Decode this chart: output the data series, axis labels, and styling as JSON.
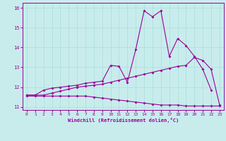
{
  "xlabel": "Windchill (Refroidissement éolien,°C)",
  "bg_color": "#c8ecec",
  "line_color": "#990099",
  "grid_color": "#aadddd",
  "x_values": [
    0,
    1,
    2,
    3,
    4,
    5,
    6,
    7,
    8,
    9,
    10,
    11,
    12,
    13,
    14,
    15,
    16,
    17,
    18,
    19,
    20,
    21,
    22,
    23
  ],
  "ylim": [
    10.85,
    16.25
  ],
  "xlim": [
    -0.5,
    23.5
  ],
  "yticks": [
    11,
    12,
    13,
    14,
    15,
    16
  ],
  "xticks": [
    0,
    1,
    2,
    3,
    4,
    5,
    6,
    7,
    8,
    9,
    10,
    11,
    12,
    13,
    14,
    15,
    16,
    17,
    18,
    19,
    20,
    21,
    22,
    23
  ],
  "line1": [
    11.6,
    11.6,
    11.85,
    11.95,
    12.0,
    12.05,
    12.1,
    12.2,
    12.25,
    12.3,
    13.1,
    13.05,
    12.25,
    13.9,
    15.85,
    15.55,
    15.85,
    13.55,
    14.45,
    14.1,
    13.55,
    12.9,
    11.85,
    null
  ],
  "line2": [
    11.6,
    11.6,
    11.6,
    11.7,
    11.8,
    11.9,
    12.0,
    12.05,
    12.1,
    12.15,
    12.25,
    12.35,
    12.45,
    12.55,
    12.65,
    12.75,
    12.85,
    12.95,
    13.05,
    13.1,
    13.5,
    13.35,
    12.9,
    11.1
  ],
  "line3": [
    11.55,
    11.55,
    11.55,
    11.55,
    11.55,
    11.55,
    11.55,
    11.55,
    11.5,
    11.45,
    11.4,
    11.35,
    11.3,
    11.25,
    11.2,
    11.15,
    11.1,
    11.1,
    11.1,
    11.05,
    11.05,
    11.05,
    11.05,
    11.05
  ]
}
